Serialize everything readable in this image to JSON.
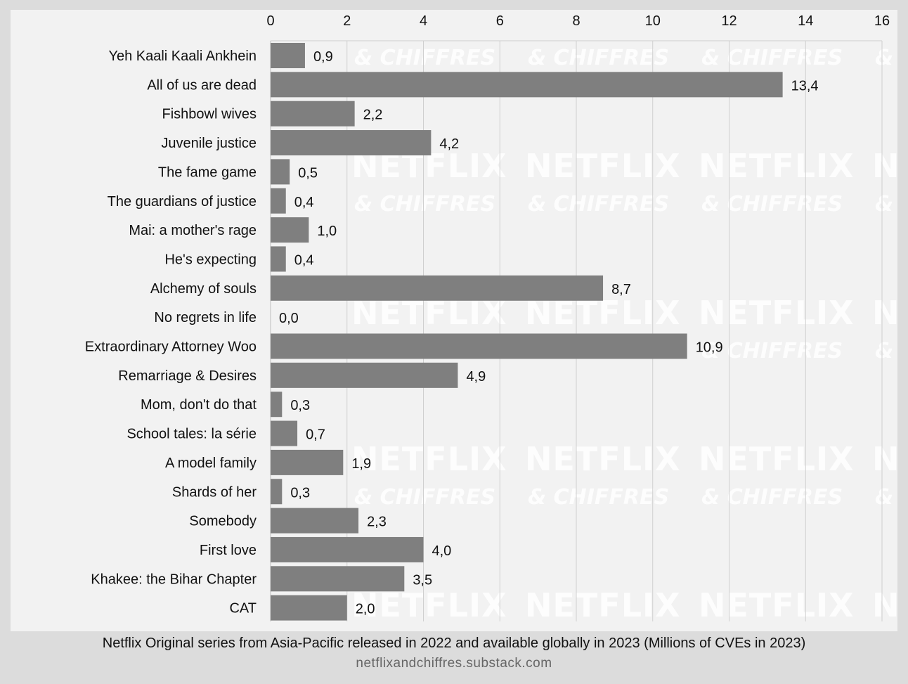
{
  "caption": "Netflix Original series from Asia-Pacific released in 2022 and available globally in 2023 (Millions of CVEs in 2023)",
  "source": "netflixandchiffres.substack.com",
  "watermark": {
    "big": "NETFLIX",
    "small": "& CHIFFRES"
  },
  "colors": {
    "bar": "#7f7f7f",
    "panel": "#f2f2f2",
    "background": "#dcdcdc",
    "grid": "#cfcfcf"
  },
  "chart_data": {
    "type": "bar",
    "orientation": "horizontal",
    "xlim": [
      0,
      16
    ],
    "xticks": [
      0,
      2,
      4,
      6,
      8,
      10,
      12,
      14,
      16
    ],
    "xaxis_position": "top",
    "grid": true,
    "categories": [
      "Yeh Kaali Kaali Ankhein",
      "All of us are dead",
      "Fishbowl wives",
      "Juvenile justice",
      "The fame game",
      "The guardians of justice",
      "Mai: a mother's rage",
      "He's expecting",
      "Alchemy of souls",
      "No regrets in life",
      "Extraordinary Attorney Woo",
      "Remarriage & Desires",
      "Mom, don't do that",
      "School tales: la série",
      "A model family",
      "Shards of her",
      "Somebody",
      "First love",
      "Khakee: the Bihar Chapter",
      "CAT"
    ],
    "values": [
      0.9,
      13.4,
      2.2,
      4.2,
      0.5,
      0.4,
      1.0,
      0.4,
      8.7,
      0.0,
      10.9,
      4.9,
      0.3,
      0.7,
      1.9,
      0.3,
      2.3,
      4.0,
      3.5,
      2.0
    ],
    "value_labels": [
      "0,9",
      "13,4",
      "2,2",
      "4,2",
      "0,5",
      "0,4",
      "1,0",
      "0,4",
      "8,7",
      "0,0",
      "10,9",
      "4,9",
      "0,3",
      "0,7",
      "1,9",
      "0,3",
      "2,3",
      "4,0",
      "3,5",
      "2,0"
    ]
  }
}
